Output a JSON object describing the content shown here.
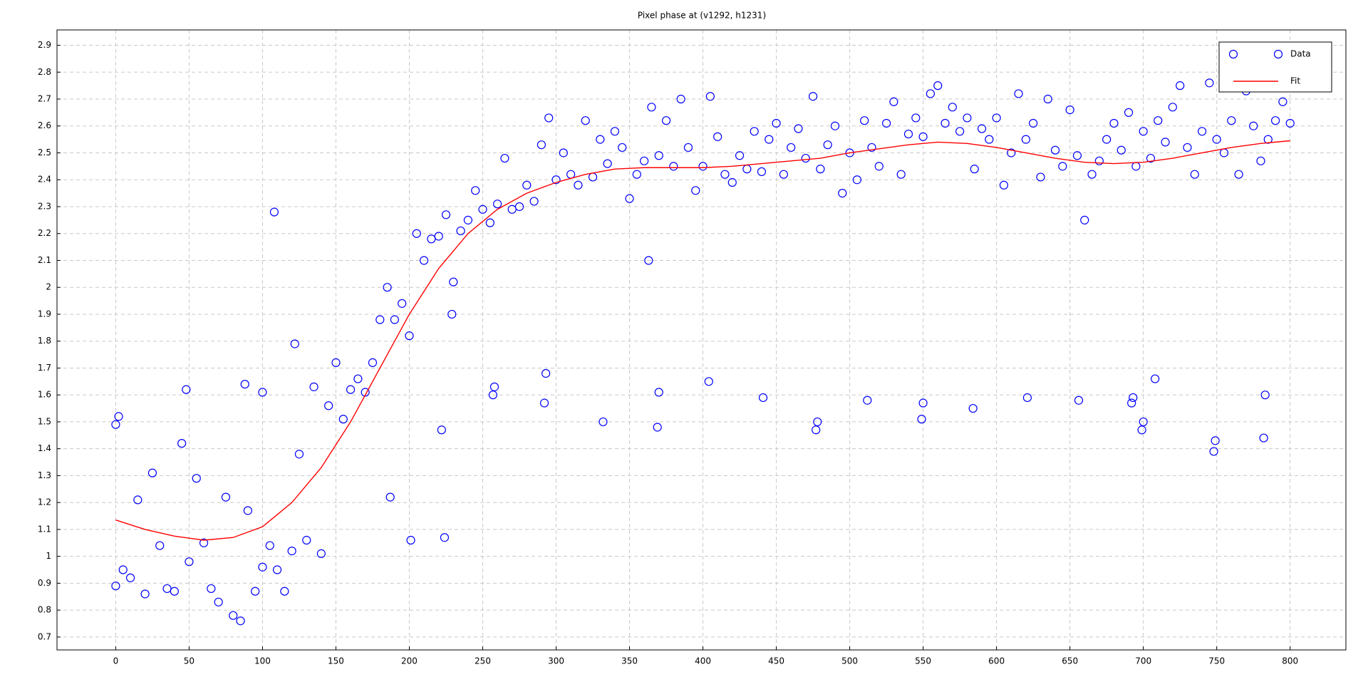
{
  "chart_data": {
    "type": "scatter",
    "title": "Pixel phase at (v1292, h1231)",
    "xlim": [
      -40,
      838
    ],
    "ylim": [
      0.652,
      2.957
    ],
    "xticks": [
      0,
      50,
      100,
      150,
      200,
      250,
      300,
      350,
      400,
      450,
      500,
      550,
      600,
      650,
      700,
      750,
      800
    ],
    "yticks": [
      0.7,
      0.8,
      0.9,
      1,
      1.1,
      1.2,
      1.3,
      1.4,
      1.5,
      1.6,
      1.7,
      1.8,
      1.9,
      2,
      2.1,
      2.2,
      2.3,
      2.4,
      2.5,
      2.6,
      2.7,
      2.8,
      2.9
    ],
    "grid": true,
    "legend": "upper right",
    "series": [
      {
        "name": "Data",
        "color": "#0000ff",
        "marker": "circle",
        "x": [
          0,
          5,
          10,
          15,
          20,
          25,
          30,
          35,
          40,
          45,
          50,
          55,
          60,
          65,
          70,
          75,
          80,
          85,
          90,
          95,
          100,
          105,
          110,
          115,
          120,
          125,
          130,
          135,
          140,
          145,
          150,
          155,
          160,
          165,
          170,
          175,
          180,
          185,
          190,
          195,
          200,
          205,
          210,
          215,
          220,
          225,
          230,
          235,
          240,
          245,
          250,
          255,
          260,
          265,
          270,
          275,
          280,
          285,
          290,
          295,
          300,
          305,
          310,
          315,
          320,
          325,
          330,
          335,
          340,
          345,
          350,
          355,
          360,
          365,
          370,
          375,
          380,
          385,
          390,
          395,
          400,
          405,
          410,
          415,
          420,
          425,
          430,
          435,
          440,
          445,
          450,
          455,
          460,
          465,
          470,
          475,
          480,
          485,
          490,
          495,
          500,
          505,
          510,
          515,
          520,
          525,
          530,
          535,
          540,
          545,
          550,
          555,
          560,
          565,
          570,
          575,
          580,
          585,
          590,
          595,
          600,
          605,
          610,
          615,
          620,
          625,
          630,
          635,
          640,
          645,
          650,
          655,
          660,
          665,
          670,
          675,
          680,
          685,
          690,
          695,
          700,
          705,
          710,
          715,
          720,
          725,
          730,
          735,
          740,
          745,
          750,
          755,
          760,
          765,
          770,
          775,
          780,
          785,
          790,
          795,
          800,
          108,
          122,
          187,
          201,
          222,
          224,
          229,
          257,
          258,
          292,
          293,
          332,
          363,
          369,
          370,
          404,
          441,
          477,
          478,
          512,
          549,
          550,
          584,
          621,
          656,
          692,
          693,
          699,
          700,
          708,
          748,
          749,
          782,
          783,
          0,
          2,
          48,
          88,
          100
        ],
        "values": [
          0.89,
          0.95,
          0.92,
          1.21,
          0.86,
          1.31,
          1.04,
          0.88,
          0.87,
          1.42,
          0.98,
          1.29,
          1.05,
          0.88,
          0.83,
          1.22,
          0.78,
          0.76,
          1.17,
          0.87,
          0.96,
          1.04,
          0.95,
          0.87,
          1.02,
          1.38,
          1.06,
          1.63,
          1.01,
          1.56,
          1.72,
          1.51,
          1.62,
          1.66,
          1.61,
          1.72,
          1.88,
          2.0,
          1.88,
          1.94,
          1.82,
          2.2,
          2.1,
          2.18,
          2.19,
          2.27,
          2.02,
          2.21,
          2.25,
          2.36,
          2.29,
          2.24,
          2.31,
          2.48,
          2.29,
          2.3,
          2.38,
          2.32,
          2.53,
          2.63,
          2.4,
          2.5,
          2.42,
          2.38,
          2.62,
          2.41,
          2.55,
          2.46,
          2.58,
          2.52,
          2.33,
          2.42,
          2.47,
          2.67,
          2.49,
          2.62,
          2.45,
          2.7,
          2.52,
          2.36,
          2.45,
          2.71,
          2.56,
          2.42,
          2.39,
          2.49,
          2.44,
          2.58,
          2.43,
          2.55,
          2.61,
          2.42,
          2.52,
          2.59,
          2.48,
          2.71,
          2.44,
          2.53,
          2.6,
          2.35,
          2.5,
          2.4,
          2.62,
          2.52,
          2.45,
          2.61,
          2.69,
          2.42,
          2.57,
          2.63,
          2.56,
          2.72,
          2.75,
          2.61,
          2.67,
          2.58,
          2.63,
          2.44,
          2.59,
          2.55,
          2.63,
          2.38,
          2.5,
          2.72,
          2.55,
          2.61,
          2.41,
          2.7,
          2.51,
          2.45,
          2.66,
          2.49,
          2.25,
          2.42,
          2.47,
          2.55,
          2.61,
          2.51,
          2.65,
          2.45,
          2.58,
          2.48,
          2.62,
          2.54,
          2.67,
          2.75,
          2.52,
          2.42,
          2.58,
          2.76,
          2.55,
          2.5,
          2.62,
          2.42,
          2.73,
          2.6,
          2.47,
          2.55,
          2.62,
          2.69,
          2.61,
          2.28,
          1.79,
          1.22,
          1.06,
          1.47,
          1.07,
          1.9,
          1.6,
          1.63,
          1.57,
          1.68,
          1.5,
          2.1,
          1.48,
          1.61,
          1.65,
          1.59,
          1.47,
          1.5,
          1.58,
          1.51,
          1.57,
          1.55,
          1.59,
          1.58,
          1.57,
          1.59,
          1.47,
          1.5,
          1.66,
          1.39,
          1.43,
          1.44,
          1.6,
          1.49,
          1.52,
          1.62,
          1.64,
          1.61
        ]
      },
      {
        "name": "Fit",
        "color": "#ff0000",
        "marker": "line",
        "x": [
          0,
          20,
          40,
          60,
          80,
          100,
          120,
          140,
          160,
          180,
          200,
          220,
          240,
          260,
          280,
          300,
          320,
          340,
          360,
          380,
          400,
          420,
          440,
          460,
          480,
          500,
          520,
          540,
          560,
          580,
          600,
          620,
          640,
          660,
          680,
          700,
          720,
          740,
          760,
          780,
          800
        ],
        "values": [
          1.135,
          1.1,
          1.075,
          1.06,
          1.07,
          1.11,
          1.2,
          1.33,
          1.5,
          1.7,
          1.9,
          2.07,
          2.2,
          2.29,
          2.35,
          2.39,
          2.42,
          2.44,
          2.445,
          2.445,
          2.445,
          2.45,
          2.46,
          2.47,
          2.48,
          2.5,
          2.515,
          2.53,
          2.54,
          2.535,
          2.52,
          2.5,
          2.48,
          2.465,
          2.46,
          2.465,
          2.48,
          2.5,
          2.52,
          2.535,
          2.545
        ]
      }
    ]
  }
}
